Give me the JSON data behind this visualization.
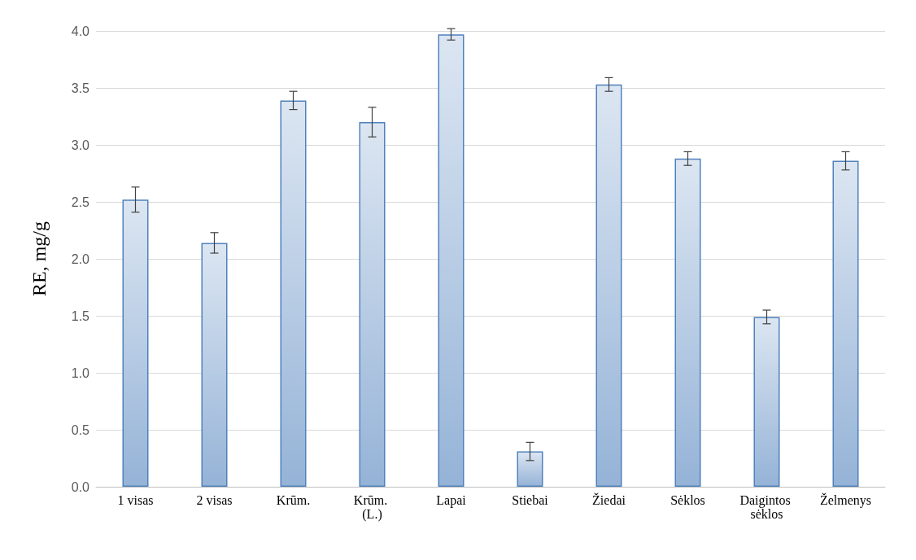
{
  "chart_data": {
    "type": "bar",
    "ylabel": "RE, mg/g",
    "categories": [
      "1 visas",
      "2 visas",
      "Krūm.",
      "Krūm. (L.)",
      "Lapai",
      "Stiebai",
      "Žiedai",
      "Sėklos",
      "Daigintos sėklos",
      "Želmenys"
    ],
    "values": [
      2.52,
      2.14,
      3.39,
      3.2,
      3.97,
      0.31,
      3.53,
      2.88,
      1.49,
      2.86
    ],
    "errors": [
      0.11,
      0.09,
      0.08,
      0.13,
      0.05,
      0.08,
      0.06,
      0.06,
      0.06,
      0.08
    ],
    "color": "#4f81bd",
    "ylim": [
      0,
      4
    ],
    "yticks": [
      {
        "value": 0,
        "label": "0.0"
      },
      0.5,
      {
        "value": 1,
        "label": "1.0"
      },
      1.5,
      {
        "value": 2,
        "label": "2.0"
      },
      2.5,
      {
        "value": 3,
        "label": "3.0"
      },
      3.5,
      {
        "value": 4,
        "label": "4.0"
      }
    ],
    "grid": "y"
  }
}
